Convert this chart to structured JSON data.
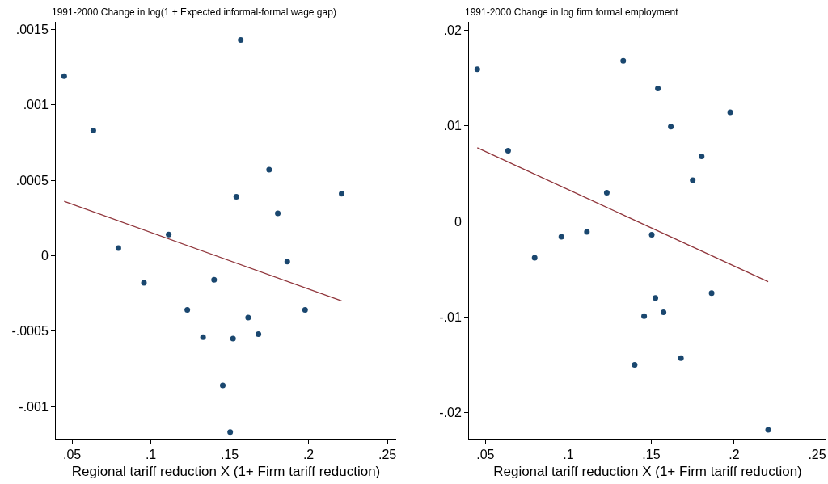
{
  "chart_data": [
    {
      "type": "scatter",
      "ylabel": "1991-2000 Change in log(1 + Expected informal-formal wage gap)",
      "xlabel": "Regional tariff reduction X (1+ Firm tariff reduction)",
      "xlim": [
        0.0397,
        0.2556
      ],
      "xticks": [
        {
          "value": 0.05,
          "label": ".05"
        },
        {
          "value": 0.1,
          "label": ".1"
        },
        {
          "value": 0.15,
          "label": ".15"
        },
        {
          "value": 0.2,
          "label": ".2"
        },
        {
          "value": 0.25,
          "label": ".25"
        }
      ],
      "ylim": [
        -0.001214,
        0.00155
      ],
      "yticks": [
        {
          "value": -0.001,
          "label": "-.001"
        },
        {
          "value": -0.0005,
          "label": "-.0005"
        },
        0,
        {
          "value": 0.0005,
          "label": ".0005"
        },
        {
          "value": 0.001,
          "label": ".001"
        },
        {
          "value": 0.0015,
          "label": ".0015"
        }
      ],
      "series": [
        {
          "color": "#1a476f",
          "marker": "circle",
          "x": [
            0.045,
            0.0635,
            0.157,
            0.175,
            0.1542,
            0.1805,
            0.221,
            0.1113,
            0.0794,
            0.0956,
            0.1401,
            0.1865,
            0.1231,
            0.1978,
            0.1617,
            0.1331,
            0.1521,
            0.1682,
            0.1456,
            0.1503
          ],
          "values": [
            0.00119,
            0.00083,
            0.00143,
            0.00057,
            0.00039,
            0.00028,
            0.00041,
            0.00014,
            5e-05,
            -0.00018,
            -0.00016,
            -4e-05,
            -0.00036,
            -0.00036,
            -0.00041,
            -0.00054,
            -0.00055,
            -0.00052,
            -0.00086,
            -0.00117
          ]
        },
        {
          "type": "line",
          "color": "#90353b",
          "marker": "none",
          "x": [
            0.045,
            0.221
          ],
          "values": [
            0.00036,
            -0.0003
          ]
        }
      ]
    },
    {
      "type": "scatter",
      "ylabel": "1991-2000 Change in log firm formal employment",
      "xlabel": "Regional tariff reduction X (1+ Firm tariff reduction)",
      "xlim": [
        0.0401,
        0.2556
      ],
      "xticks": [
        {
          "value": 0.05,
          "label": ".05"
        },
        {
          "value": 0.1,
          "label": ".1"
        },
        {
          "value": 0.15,
          "label": ".15"
        },
        {
          "value": 0.2,
          "label": ".2"
        },
        {
          "value": 0.25,
          "label": ".25"
        }
      ],
      "ylim": [
        -0.02273,
        0.02087
      ],
      "yticks": [
        {
          "value": -0.02,
          "label": "-.02"
        },
        {
          "value": -0.01,
          "label": "-.01"
        },
        0,
        {
          "value": 0.01,
          "label": ".01"
        },
        {
          "value": 0.02,
          "label": ".02"
        }
      ],
      "series": [
        {
          "color": "#1a476f",
          "marker": "circle",
          "x": [
            0.0451,
            0.0637,
            0.1331,
            0.154,
            0.1618,
            0.1976,
            0.1804,
            0.175,
            0.1232,
            0.0797,
            0.0958,
            0.1112,
            0.1503,
            0.1864,
            0.1525,
            0.1574,
            0.1457,
            0.1679,
            0.14,
            0.2205
          ],
          "values": [
            0.0159,
            0.0074,
            0.0168,
            0.0139,
            0.0099,
            0.0114,
            0.0068,
            0.0043,
            0.003,
            -0.0038,
            -0.0016,
            -0.0011,
            -0.0014,
            -0.0075,
            -0.008,
            -0.0095,
            -0.0099,
            -0.0143,
            -0.015,
            -0.0218
          ]
        },
        {
          "type": "line",
          "color": "#90353b",
          "marker": "none",
          "x": [
            0.0451,
            0.2205
          ],
          "values": [
            0.0077,
            -0.0063
          ]
        }
      ]
    }
  ]
}
